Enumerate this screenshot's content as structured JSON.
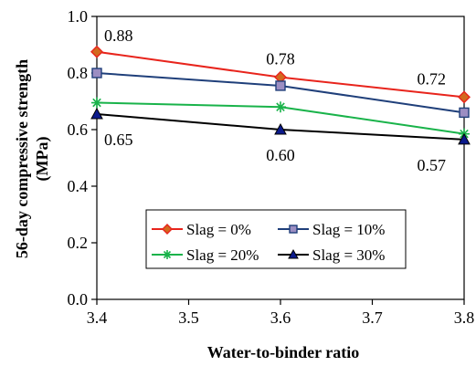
{
  "chart_data": {
    "type": "line",
    "xlabel": "Water-to-binder ratio",
    "ylabel_line1": "56-day compressive strength",
    "ylabel_line2": "(MPa)",
    "x": [
      3.4,
      3.6,
      3.8
    ],
    "xlim": [
      3.4,
      3.8
    ],
    "xticks": [
      "3.4",
      "3.5",
      "3.6",
      "3.7",
      "3.8"
    ],
    "ylim": [
      0.0,
      1.0
    ],
    "yticks": [
      "0.0",
      "0.2",
      "0.4",
      "0.6",
      "0.8",
      "1.0"
    ],
    "grid": false,
    "legend_placement": "bottom-center",
    "series": [
      {
        "name": "Slag = 0%",
        "values": [
          0.875,
          0.785,
          0.715
        ],
        "color": "#e8241c",
        "marker": "diamond",
        "marker_fill": "#d2691e"
      },
      {
        "name": "Slag = 10%",
        "values": [
          0.8,
          0.755,
          0.66
        ],
        "color": "#1f3f7a",
        "marker": "square",
        "marker_fill": "#9c8ec2"
      },
      {
        "name": "Slag = 20%",
        "values": [
          0.695,
          0.68,
          0.585
        ],
        "color": "#19b34a",
        "marker": "asterisk",
        "marker_fill": "#19b34a"
      },
      {
        "name": "Slag = 30%",
        "values": [
          0.655,
          0.6,
          0.565
        ],
        "color": "#000000",
        "marker": "triangle",
        "marker_fill": "#0b1a8c"
      }
    ],
    "annotations": [
      {
        "text": "0.88",
        "x": 3.4,
        "y": 0.875,
        "anchor": "above-right"
      },
      {
        "text": "0.78",
        "x": 3.6,
        "y": 0.785,
        "anchor": "above"
      },
      {
        "text": "0.72",
        "x": 3.8,
        "y": 0.715,
        "anchor": "above-left"
      },
      {
        "text": "0.65",
        "x": 3.4,
        "y": 0.655,
        "anchor": "below-right"
      },
      {
        "text": "0.60",
        "x": 3.6,
        "y": 0.6,
        "anchor": "below"
      },
      {
        "text": "0.57",
        "x": 3.8,
        "y": 0.565,
        "anchor": "below-left"
      }
    ]
  }
}
